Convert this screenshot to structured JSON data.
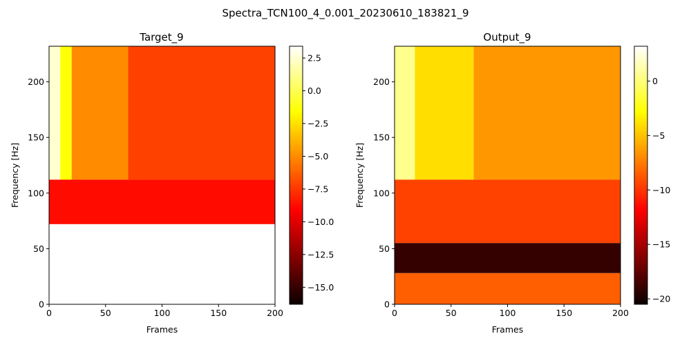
{
  "figure": {
    "suptitle": "Spectra_TCN100_4_0.001_20230610_183821_9"
  },
  "chart_data": [
    {
      "type": "heatmap",
      "title": "Target_9",
      "xlabel": "Frames",
      "ylabel": "Frequency [Hz]",
      "xlim": [
        0,
        200
      ],
      "ylim": [
        0,
        232
      ],
      "xticks": [
        0,
        50,
        100,
        150,
        200
      ],
      "yticks": [
        0,
        50,
        100,
        150,
        200
      ],
      "colormap": "hot",
      "colorbar": {
        "range": [
          -16.3,
          3.4
        ],
        "ticks": [
          2.5,
          0.0,
          -2.5,
          -5.0,
          -7.5,
          -10.0,
          -12.5,
          -15.0
        ],
        "tick_labels": [
          "2.5",
          "0.0",
          "−2.5",
          "−5.0",
          "−7.5",
          "−10.0",
          "−12.5",
          "−15.0"
        ]
      },
      "regions": [
        {
          "freq_range": [
            112,
            232
          ],
          "frames": [
            0,
            10
          ],
          "value": 2.5
        },
        {
          "freq_range": [
            112,
            232
          ],
          "frames": [
            10,
            20
          ],
          "value": -1.5
        },
        {
          "freq_range": [
            112,
            232
          ],
          "frames": [
            20,
            70
          ],
          "value": -5.0
        },
        {
          "freq_range": [
            112,
            232
          ],
          "frames": [
            70,
            200
          ],
          "value": -7.2
        },
        {
          "freq_range": [
            72,
            112
          ],
          "frames": [
            0,
            200
          ],
          "value": -8.8
        },
        {
          "freq_range": [
            0,
            72
          ],
          "frames": [
            0,
            200
          ],
          "value": null
        }
      ]
    },
    {
      "type": "heatmap",
      "title": "Output_9",
      "xlabel": "Frames",
      "ylabel": "Frequency [Hz]",
      "xlim": [
        0,
        200
      ],
      "ylim": [
        0,
        232
      ],
      "xticks": [
        0,
        50,
        100,
        150,
        200
      ],
      "yticks": [
        0,
        50,
        100,
        150,
        200
      ],
      "colormap": "hot",
      "colorbar": {
        "range": [
          -20.5,
          3.2
        ],
        "ticks": [
          0,
          -5,
          -10,
          -15,
          -20
        ],
        "tick_labels": [
          "0",
          "−5",
          "−10",
          "−15",
          "−20"
        ]
      },
      "regions": [
        {
          "freq_range": [
            112,
            232
          ],
          "frames": [
            0,
            18
          ],
          "value": 0.5
        },
        {
          "freq_range": [
            112,
            232
          ],
          "frames": [
            18,
            70
          ],
          "value": -4.0
        },
        {
          "freq_range": [
            112,
            232
          ],
          "frames": [
            70,
            200
          ],
          "value": -6.5
        },
        {
          "freq_range": [
            55,
            112
          ],
          "frames": [
            0,
            200
          ],
          "value": -9.5
        },
        {
          "freq_range": [
            28,
            55
          ],
          "frames": [
            0,
            200
          ],
          "value": -19.0
        },
        {
          "freq_range": [
            0,
            28
          ],
          "frames": [
            0,
            200
          ],
          "value": -8.5
        }
      ]
    }
  ]
}
